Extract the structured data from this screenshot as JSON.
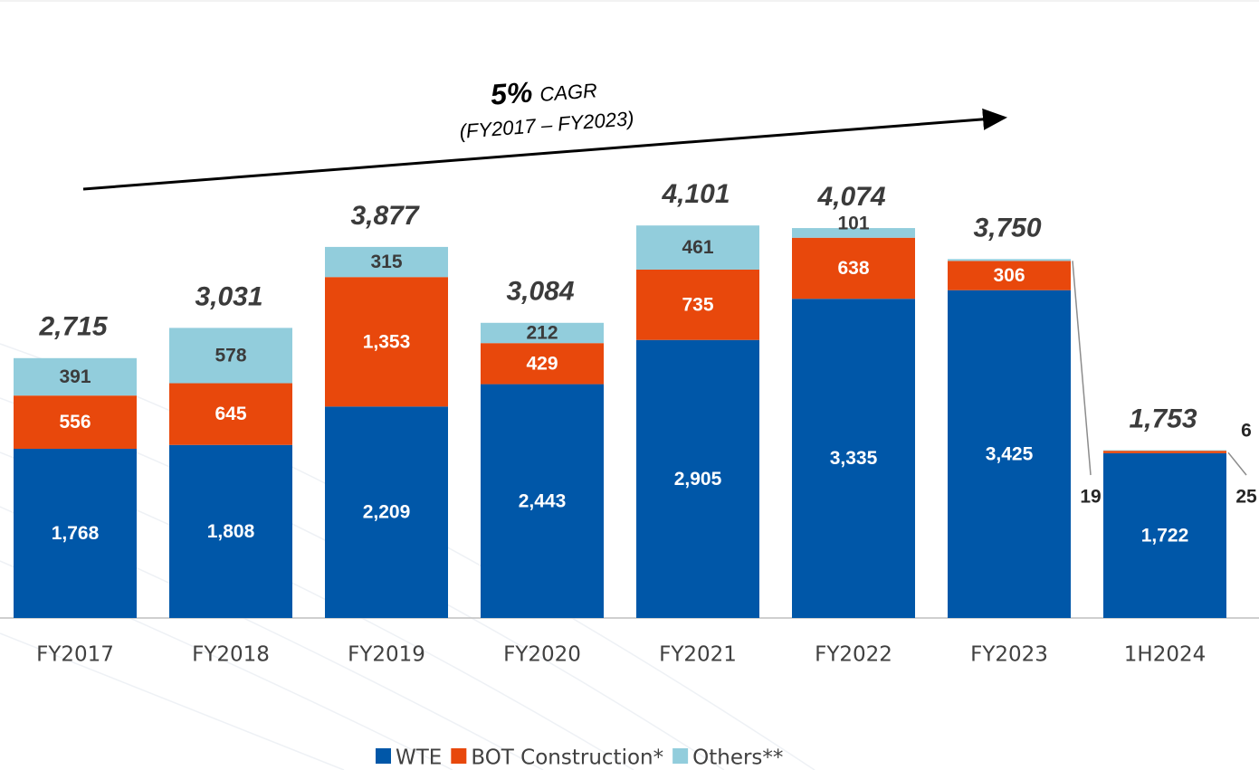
{
  "chart_data": {
    "type": "stacked-bar",
    "categories": [
      "FY2017",
      "FY2018",
      "FY2019",
      "FY2020",
      "FY2021",
      "FY2022",
      "FY2023",
      "1H2024"
    ],
    "series": [
      {
        "name": "WTE",
        "color": "#0057a8",
        "values": [
          1768,
          1808,
          2209,
          2443,
          2905,
          3335,
          3425,
          1722
        ],
        "value_labels": [
          "1,768",
          "1,808",
          "2,209",
          "2,443",
          "2,905",
          "3,335",
          "3,425",
          "1,722"
        ]
      },
      {
        "name": "BOT Construction*",
        "color": "#e8480c",
        "values": [
          556,
          645,
          1353,
          429,
          735,
          638,
          306,
          25
        ],
        "value_labels": [
          "556",
          "645",
          "1,353",
          "429",
          "735",
          "638",
          "306",
          "25"
        ]
      },
      {
        "name": "Others**",
        "color": "#92cddc",
        "values": [
          391,
          578,
          315,
          212,
          461,
          101,
          19,
          6
        ],
        "value_labels": [
          "391",
          "578",
          "315",
          "212",
          "461",
          "101",
          "19",
          "6"
        ]
      }
    ],
    "totals": {
      "values": [
        2715,
        3031,
        3877,
        3084,
        4101,
        4074,
        3750,
        1753
      ],
      "value_labels": [
        "2,715",
        "3,031",
        "3,877",
        "3,084",
        "4,101",
        "4,074",
        "3,750",
        "1,753"
      ]
    },
    "annotation": {
      "rate": "5%",
      "label": "CAGR",
      "period": "(FY2017 – FY2023)"
    },
    "ylim": [
      0,
      4500
    ],
    "legend": "bottom"
  }
}
